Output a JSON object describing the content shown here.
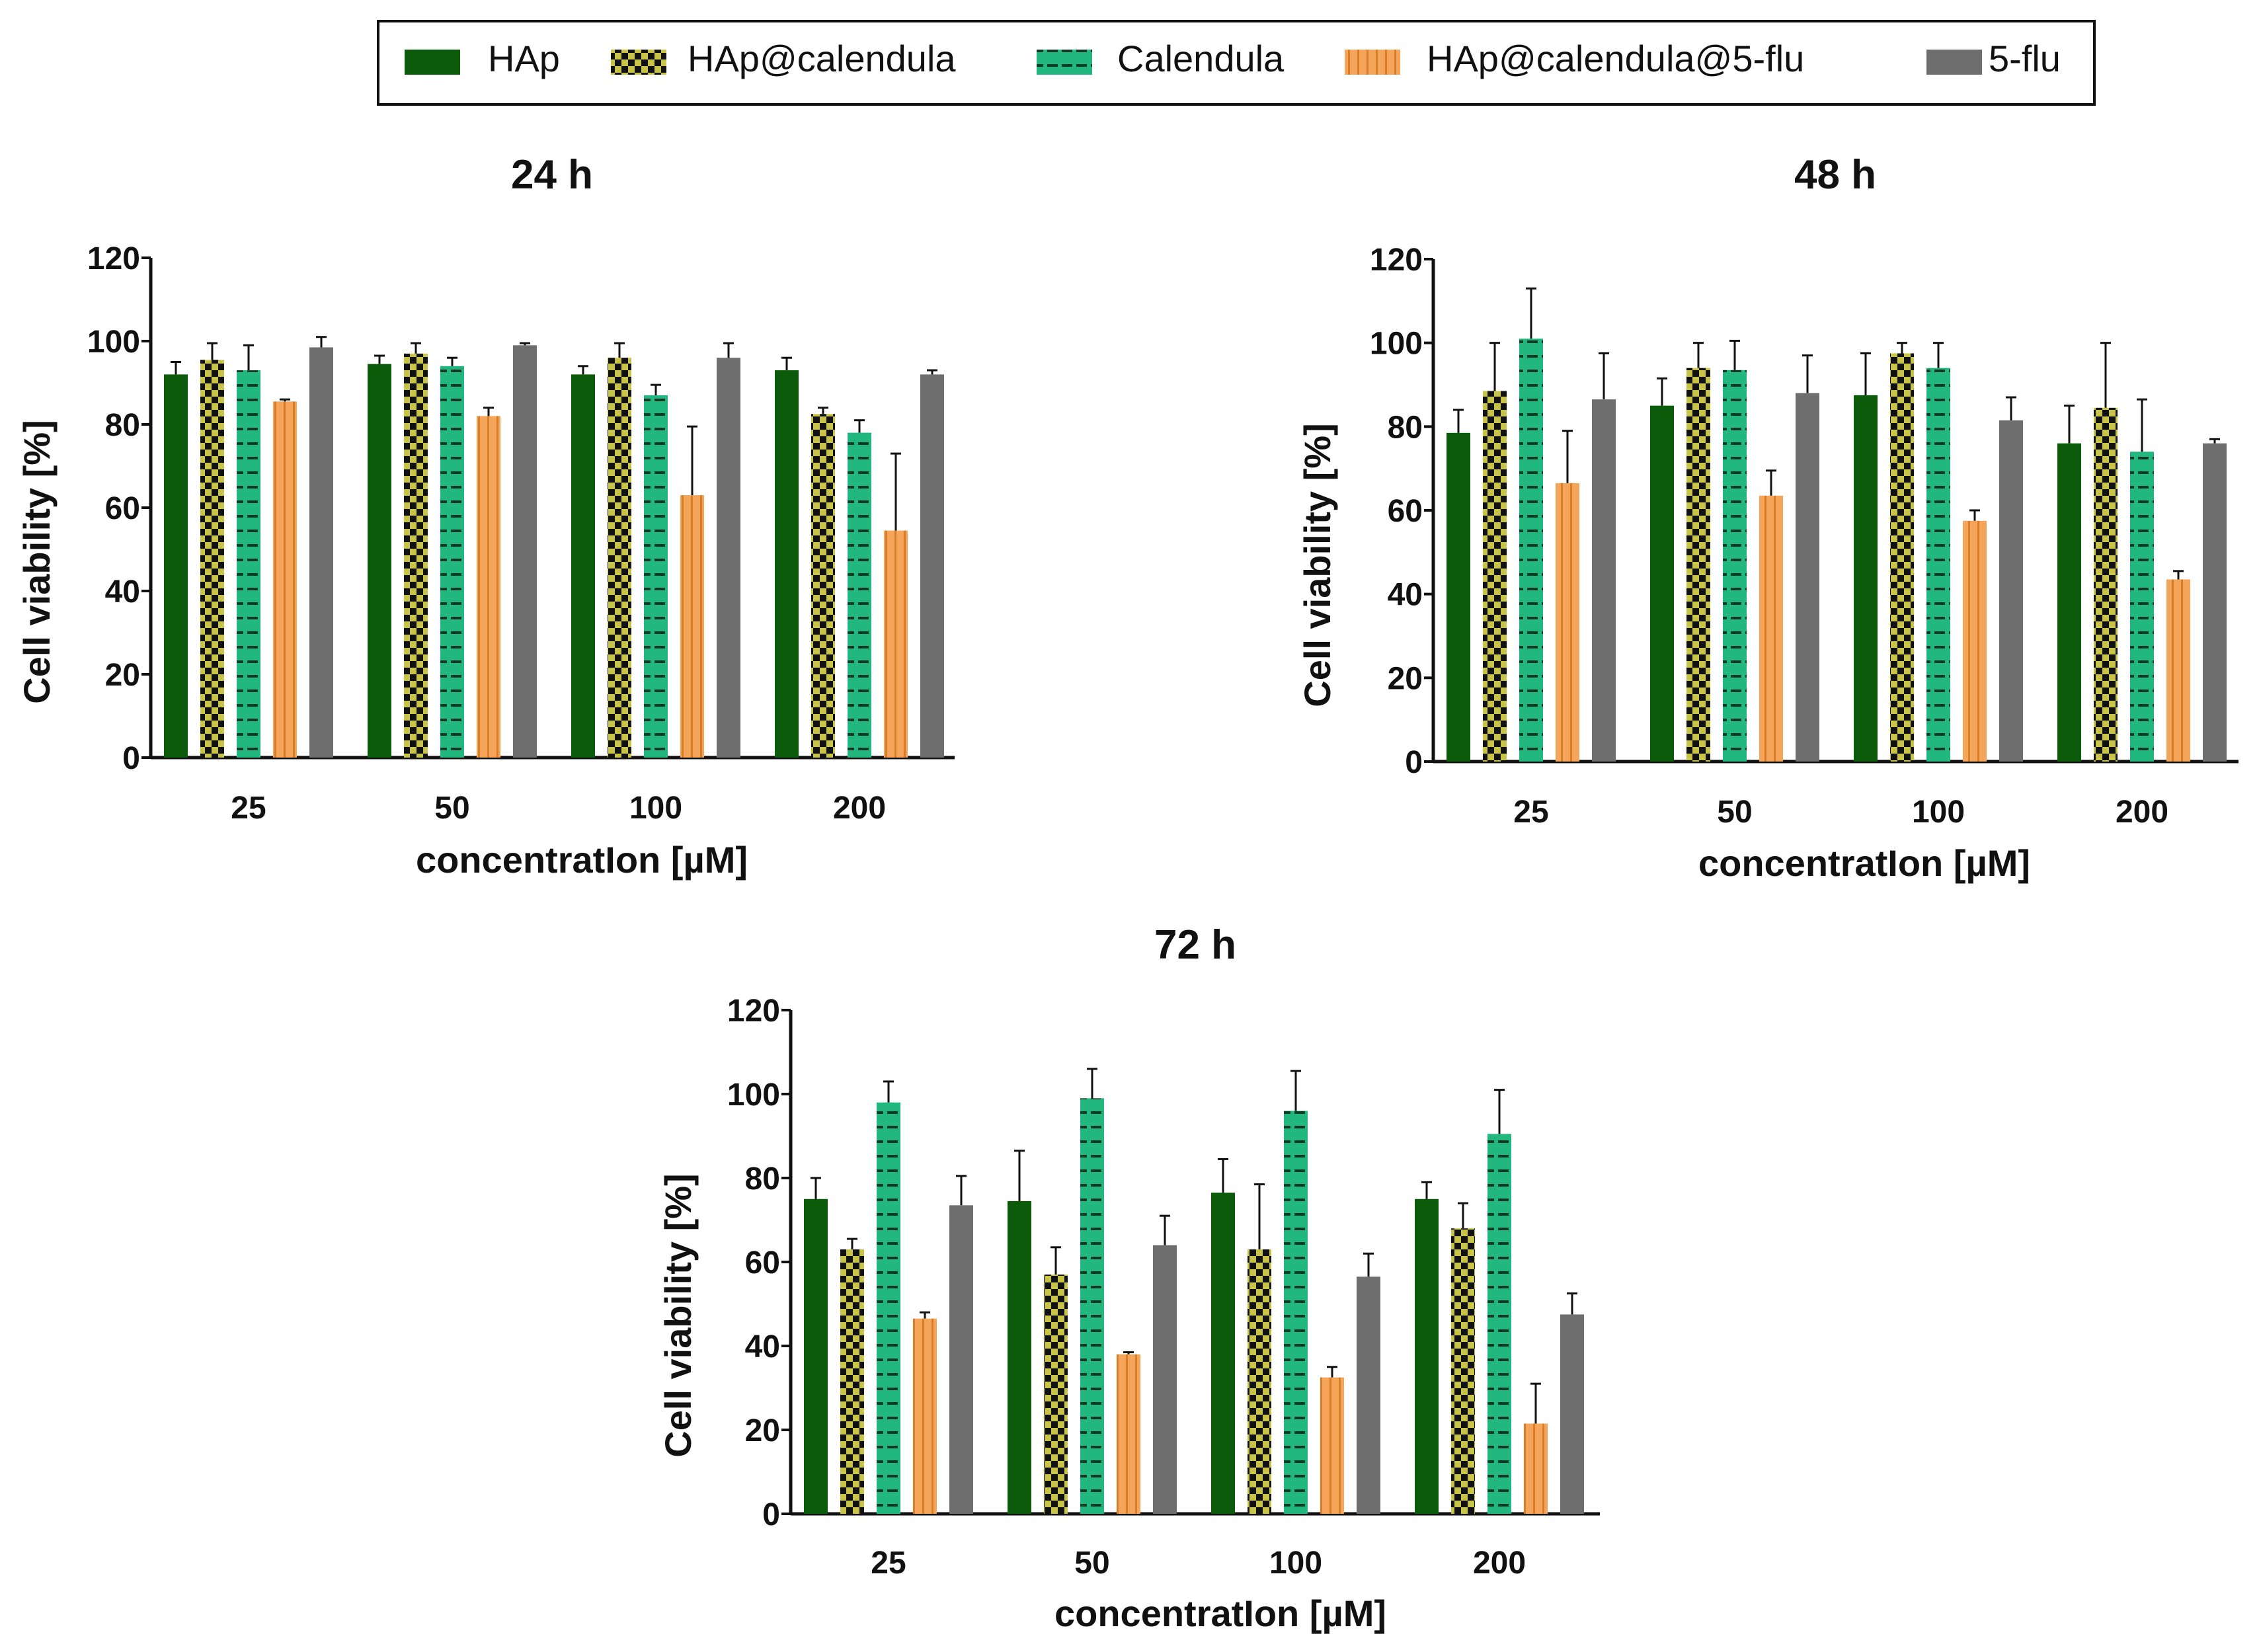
{
  "chart_data": [
    {
      "type": "bar",
      "title": "24 h",
      "xlabel": "concentratIon [µM]",
      "ylabel": "Cell viability [%]",
      "ylim": [
        0,
        120
      ],
      "yticks": [
        0,
        20,
        40,
        60,
        80,
        100,
        120
      ],
      "categories": [
        "25",
        "50",
        "100",
        "200"
      ],
      "series": [
        {
          "name": "HAp",
          "values": [
            92,
            94.5,
            92,
            93
          ],
          "errors": [
            3,
            2,
            2,
            3
          ]
        },
        {
          "name": "HAp@calendula",
          "values": [
            95.5,
            97,
            96,
            82.5
          ],
          "errors": [
            4,
            2.5,
            3.5,
            1.5
          ]
        },
        {
          "name": "Calendula",
          "values": [
            93,
            94,
            87,
            78
          ],
          "errors": [
            6,
            2,
            2.5,
            3
          ]
        },
        {
          "name": "HAp@calendula@5-flu",
          "values": [
            85.5,
            82,
            63,
            54.5
          ],
          "errors": [
            0.5,
            2,
            16.5,
            18.5
          ]
        },
        {
          "name": "5-flu",
          "values": [
            98.5,
            99,
            96,
            92
          ],
          "errors": [
            2.5,
            0.5,
            3.5,
            1
          ]
        }
      ]
    },
    {
      "type": "bar",
      "title": "48 h",
      "xlabel": "concentratIon [µM]",
      "ylabel": "Cell viability [%]",
      "ylim": [
        0,
        120
      ],
      "yticks": [
        0,
        20,
        40,
        60,
        80,
        100,
        120
      ],
      "categories": [
        "25",
        "50",
        "100",
        "200"
      ],
      "series": [
        {
          "name": "HAp",
          "values": [
            78.5,
            85,
            87.5,
            76
          ],
          "errors": [
            5.5,
            6.5,
            10,
            9
          ]
        },
        {
          "name": "HAp@calendula",
          "values": [
            88.5,
            94,
            97.5,
            84.5
          ],
          "errors": [
            11.5,
            6,
            2.5,
            15.5
          ]
        },
        {
          "name": "Calendula",
          "values": [
            101,
            93.5,
            94,
            74
          ],
          "errors": [
            12,
            7,
            6,
            12.5
          ]
        },
        {
          "name": "HAp@calendula@5-flu",
          "values": [
            66.5,
            63.5,
            57.5,
            43.5
          ],
          "errors": [
            12.5,
            6,
            2.5,
            2
          ]
        },
        {
          "name": "5-flu",
          "values": [
            86.5,
            88,
            81.5,
            76
          ],
          "errors": [
            11,
            9,
            5.5,
            1
          ]
        }
      ]
    },
    {
      "type": "bar",
      "title": "72 h",
      "xlabel": "concentratIon [µM]",
      "ylabel": "Cell viability [%]",
      "ylim": [
        0,
        120
      ],
      "yticks": [
        0,
        20,
        40,
        60,
        80,
        100,
        120
      ],
      "categories": [
        "25",
        "50",
        "100",
        "200"
      ],
      "series": [
        {
          "name": "HAp",
          "values": [
            75,
            74.5,
            76.5,
            75
          ],
          "errors": [
            5,
            12,
            8,
            4
          ]
        },
        {
          "name": "HAp@calendula",
          "values": [
            63,
            57,
            63,
            68
          ],
          "errors": [
            2.5,
            6.5,
            15.5,
            6
          ]
        },
        {
          "name": "Calendula",
          "values": [
            98,
            99,
            96,
            90.5
          ],
          "errors": [
            5,
            7,
            9.5,
            10.5
          ]
        },
        {
          "name": "HAp@calendula@5-flu",
          "values": [
            46.5,
            38,
            32.5,
            21.5
          ],
          "errors": [
            1.5,
            0.5,
            2.5,
            9.5
          ]
        },
        {
          "name": "5-flu",
          "values": [
            73.5,
            64,
            56.5,
            47.5
          ],
          "errors": [
            7,
            7,
            5.5,
            5
          ]
        }
      ]
    }
  ],
  "legend": {
    "placement": "top-center",
    "items": [
      {
        "label": "HAp",
        "color": "#0b5b0b",
        "pattern": "solid"
      },
      {
        "label": "HAp@calendula",
        "color": "#c8c44a",
        "pattern": "checker"
      },
      {
        "label": "Calendula",
        "color": "#21b77e",
        "pattern": "horizontal-dashes"
      },
      {
        "label": "HAp@calendula@5-flu",
        "color": "#f4a55a",
        "pattern": "vertical-stripes"
      },
      {
        "label": "5-flu",
        "color": "#6e6e6e",
        "pattern": "solid"
      }
    ]
  }
}
